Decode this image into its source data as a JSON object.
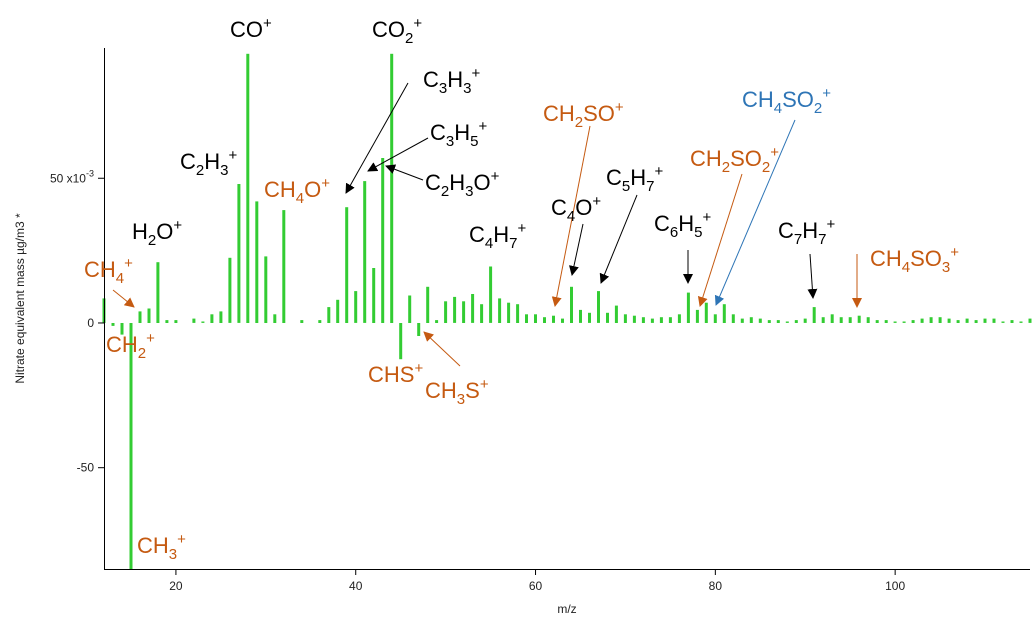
{
  "chart_data": {
    "type": "bar",
    "xlabel": "m/z",
    "ylabel": "Nitrate equivalent mass µg/m3 *",
    "xlim": [
      12,
      115
    ],
    "ylim": [
      -0.085,
      0.095
    ],
    "grid": false,
    "bar_color": "#33cc33",
    "x_ticks": [
      {
        "value": 20,
        "label": "20"
      },
      {
        "value": 40,
        "label": "40"
      },
      {
        "value": 60,
        "label": "60"
      },
      {
        "value": 80,
        "label": "80"
      },
      {
        "value": 100,
        "label": "100"
      }
    ],
    "y_ticks": [
      {
        "value": 0.05,
        "label": "50 x10",
        "exp": "-3"
      },
      {
        "value": 0,
        "label": "0",
        "exp": ""
      },
      {
        "value": -0.05,
        "label": "-50",
        "exp": ""
      }
    ],
    "x": [
      12,
      13,
      14,
      15,
      16,
      17,
      18,
      19,
      20,
      21,
      22,
      23,
      24,
      25,
      26,
      27,
      28,
      29,
      30,
      31,
      32,
      33,
      34,
      35,
      36,
      37,
      38,
      39,
      40,
      41,
      42,
      43,
      44,
      45,
      46,
      47,
      48,
      49,
      50,
      51,
      52,
      53,
      54,
      55,
      56,
      57,
      58,
      59,
      60,
      61,
      62,
      63,
      64,
      65,
      66,
      67,
      68,
      69,
      70,
      71,
      72,
      73,
      74,
      75,
      76,
      77,
      78,
      79,
      80,
      81,
      82,
      83,
      84,
      85,
      86,
      87,
      88,
      89,
      90,
      91,
      92,
      93,
      94,
      95,
      96,
      97,
      98,
      99,
      100,
      101,
      102,
      103,
      104,
      105,
      106,
      107,
      108,
      109,
      110,
      111,
      112,
      113,
      114,
      115
    ],
    "values": [
      0.0085,
      -0.001,
      -0.004,
      -0.085,
      0.004,
      0.005,
      0.021,
      0.001,
      0.001,
      0,
      0.0015,
      0.0005,
      0.003,
      0.004,
      0.0225,
      0.048,
      0.093,
      0.042,
      0.023,
      0.003,
      0.039,
      0,
      0.001,
      0,
      0.001,
      0.0055,
      0.008,
      0.04,
      0.011,
      0.049,
      0.019,
      0.057,
      0.093,
      -0.0125,
      0.0095,
      -0.0045,
      0.0125,
      0.001,
      0.0075,
      0.009,
      0.0075,
      0.01,
      0.0065,
      0.0195,
      0.0085,
      0.007,
      0.0065,
      0.003,
      0.003,
      0.002,
      0.0025,
      0.0015,
      0.0125,
      0.0045,
      0.0035,
      0.011,
      0.0035,
      0.006,
      0.003,
      0.0025,
      0.002,
      0.0015,
      0.002,
      0.002,
      0.003,
      0.0105,
      0.0045,
      0.007,
      0.003,
      0.0065,
      0.003,
      0.0015,
      0.002,
      0.0015,
      0.001,
      0.001,
      0.0005,
      0.001,
      0.0015,
      0.0055,
      0.002,
      0.003,
      0.002,
      0.002,
      0.0025,
      0.002,
      0.001,
      0.001,
      0.0005,
      0.0005,
      0.001,
      0.0015,
      0.002,
      0.002,
      0.0015,
      0.001,
      0.0015,
      0.001,
      0.0015,
      0.0015,
      0.0005,
      0.001,
      0.0005,
      0.0015
    ],
    "annotations": [
      {
        "id": "co",
        "parts": [
          [
            "CO",
            ""
          ],
          [
            "+",
            "sup"
          ]
        ],
        "color": "#000000",
        "x": 28,
        "value": 0.093
      },
      {
        "id": "co2",
        "parts": [
          [
            "CO",
            ""
          ],
          [
            "2",
            "sub"
          ],
          [
            "+",
            "sup"
          ]
        ],
        "color": "#000000",
        "x": 44,
        "value": 0.093
      },
      {
        "id": "c3h3",
        "parts": [
          [
            "C",
            ""
          ],
          [
            "3",
            "sub"
          ],
          [
            "H",
            ""
          ],
          [
            "3",
            "sub"
          ],
          [
            "+",
            "sup"
          ]
        ],
        "color": "#000000",
        "x": 39,
        "value": 0.04
      },
      {
        "id": "c3h5",
        "parts": [
          [
            "C",
            ""
          ],
          [
            "3",
            "sub"
          ],
          [
            "H",
            ""
          ],
          [
            "5",
            "sub"
          ],
          [
            "+",
            "sup"
          ]
        ],
        "color": "#000000",
        "x": 41,
        "value": 0.049
      },
      {
        "id": "c2h3o",
        "parts": [
          [
            "C",
            ""
          ],
          [
            "2",
            "sub"
          ],
          [
            "H",
            ""
          ],
          [
            "3",
            "sub"
          ],
          [
            "O",
            ""
          ],
          [
            "+",
            "sup"
          ]
        ],
        "color": "#000000",
        "x": 43,
        "value": 0.057
      },
      {
        "id": "c2h3",
        "parts": [
          [
            "C",
            ""
          ],
          [
            "2",
            "sub"
          ],
          [
            "H",
            ""
          ],
          [
            "3",
            "sub"
          ],
          [
            "+",
            "sup"
          ]
        ],
        "color": "#000000",
        "x": 27,
        "value": 0.048
      },
      {
        "id": "ch4o",
        "parts": [
          [
            "CH",
            ""
          ],
          [
            "4",
            "sub"
          ],
          [
            "O",
            ""
          ],
          [
            "+",
            "sup"
          ]
        ],
        "color": "#c55a11",
        "x": 32,
        "value": 0.039
      },
      {
        "id": "h2o",
        "parts": [
          [
            "H",
            ""
          ],
          [
            "2",
            "sub"
          ],
          [
            "O",
            ""
          ],
          [
            "+",
            "sup"
          ]
        ],
        "color": "#000000",
        "x": 18,
        "value": 0.021
      },
      {
        "id": "ch4",
        "parts": [
          [
            "CH",
            ""
          ],
          [
            "4",
            "sub"
          ],
          [
            "+",
            "sup"
          ]
        ],
        "color": "#c55a11",
        "x": 16,
        "value": 0.004
      },
      {
        "id": "ch2",
        "parts": [
          [
            "CH",
            ""
          ],
          [
            "2",
            "sub"
          ],
          [
            "+",
            "sup"
          ]
        ],
        "color": "#c55a11",
        "x": 14,
        "value": -0.004
      },
      {
        "id": "ch3",
        "parts": [
          [
            "CH",
            ""
          ],
          [
            "3",
            "sub"
          ],
          [
            "+",
            "sup"
          ]
        ],
        "color": "#c55a11",
        "x": 15,
        "value": -0.085
      },
      {
        "id": "chs",
        "parts": [
          [
            "CHS",
            ""
          ],
          [
            "+",
            "sup"
          ]
        ],
        "color": "#c55a11",
        "x": 45,
        "value": -0.0125
      },
      {
        "id": "ch3s",
        "parts": [
          [
            "CH",
            ""
          ],
          [
            "3",
            "sub"
          ],
          [
            "S",
            ""
          ],
          [
            "+",
            "sup"
          ]
        ],
        "color": "#c55a11",
        "x": 47,
        "value": -0.0045
      },
      {
        "id": "c4h7",
        "parts": [
          [
            "C",
            ""
          ],
          [
            "4",
            "sub"
          ],
          [
            "H",
            ""
          ],
          [
            "7",
            "sub"
          ],
          [
            "+",
            "sup"
          ]
        ],
        "color": "#000000",
        "x": 55,
        "value": 0.0195
      },
      {
        "id": "ch2so",
        "parts": [
          [
            "CH",
            ""
          ],
          [
            "2",
            "sub"
          ],
          [
            "SO",
            ""
          ],
          [
            "+",
            "sup"
          ]
        ],
        "color": "#c55a11",
        "x": 62,
        "value": 0.0025
      },
      {
        "id": "c4o",
        "parts": [
          [
            "C",
            ""
          ],
          [
            "4",
            "sub"
          ],
          [
            "O",
            ""
          ],
          [
            "+",
            "sup"
          ]
        ],
        "color": "#000000",
        "x": 64,
        "value": 0.0125
      },
      {
        "id": "c5h7",
        "parts": [
          [
            "C",
            ""
          ],
          [
            "5",
            "sub"
          ],
          [
            "H",
            ""
          ],
          [
            "7",
            "sub"
          ],
          [
            "+",
            "sup"
          ]
        ],
        "color": "#000000",
        "x": 67,
        "value": 0.011
      },
      {
        "id": "c6h5",
        "parts": [
          [
            "C",
            ""
          ],
          [
            "6",
            "sub"
          ],
          [
            "H",
            ""
          ],
          [
            "5",
            "sub"
          ],
          [
            "+",
            "sup"
          ]
        ],
        "color": "#000000",
        "x": 77,
        "value": 0.0105
      },
      {
        "id": "ch2so2",
        "parts": [
          [
            "CH",
            ""
          ],
          [
            "2",
            "sub"
          ],
          [
            "SO",
            ""
          ],
          [
            "2",
            "sub"
          ],
          [
            "+",
            "sup"
          ]
        ],
        "color": "#c55a11",
        "x": 78,
        "value": 0.0045
      },
      {
        "id": "ch4so2",
        "parts": [
          [
            "CH",
            ""
          ],
          [
            "4",
            "sub"
          ],
          [
            "SO",
            ""
          ],
          [
            "2",
            "sub"
          ],
          [
            "+",
            "sup"
          ]
        ],
        "color": "#2e75b6",
        "x": 80,
        "value": 0.003
      },
      {
        "id": "c7h7",
        "parts": [
          [
            "C",
            ""
          ],
          [
            "7",
            "sub"
          ],
          [
            "H",
            ""
          ],
          [
            "7",
            "sub"
          ],
          [
            "+",
            "sup"
          ]
        ],
        "color": "#000000",
        "x": 91,
        "value": 0.0055
      },
      {
        "id": "ch4so3",
        "parts": [
          [
            "CH",
            ""
          ],
          [
            "4",
            "sub"
          ],
          [
            "SO",
            ""
          ],
          [
            "3",
            "sub"
          ],
          [
            "+",
            "sup"
          ]
        ],
        "color": "#c55a11",
        "x": 96,
        "value": 0.0025
      }
    ]
  }
}
